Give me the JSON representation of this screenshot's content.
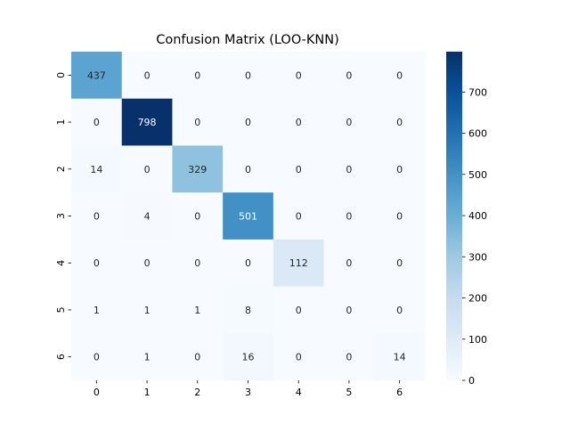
{
  "chart_data": {
    "type": "heatmap",
    "title": "Confusion Matrix (LOO-KNN)",
    "xlabel": "",
    "ylabel": "",
    "x_categories": [
      "0",
      "1",
      "2",
      "3",
      "4",
      "5",
      "6"
    ],
    "y_categories": [
      "0",
      "1",
      "2",
      "3",
      "4",
      "5",
      "6"
    ],
    "matrix": [
      [
        437,
        0,
        0,
        0,
        0,
        0,
        0
      ],
      [
        0,
        798,
        0,
        0,
        0,
        0,
        0
      ],
      [
        14,
        0,
        329,
        0,
        0,
        0,
        0
      ],
      [
        0,
        4,
        0,
        501,
        0,
        0,
        0
      ],
      [
        0,
        0,
        0,
        0,
        112,
        0,
        0
      ],
      [
        1,
        1,
        1,
        8,
        0,
        0,
        0
      ],
      [
        0,
        1,
        0,
        16,
        0,
        0,
        14
      ]
    ],
    "colormap": "Blues",
    "colormap_stops": [
      "#f7fbff",
      "#deebf7",
      "#c6dbef",
      "#9ecae1",
      "#6baed6",
      "#4292c6",
      "#2171b5",
      "#08519c",
      "#08306b"
    ],
    "colorbar": {
      "range": [
        0,
        798
      ],
      "ticks": [
        "0",
        "100",
        "200",
        "300",
        "400",
        "500",
        "600",
        "700"
      ]
    },
    "annotations": true,
    "grid": false,
    "legend": "colorbar-right"
  }
}
